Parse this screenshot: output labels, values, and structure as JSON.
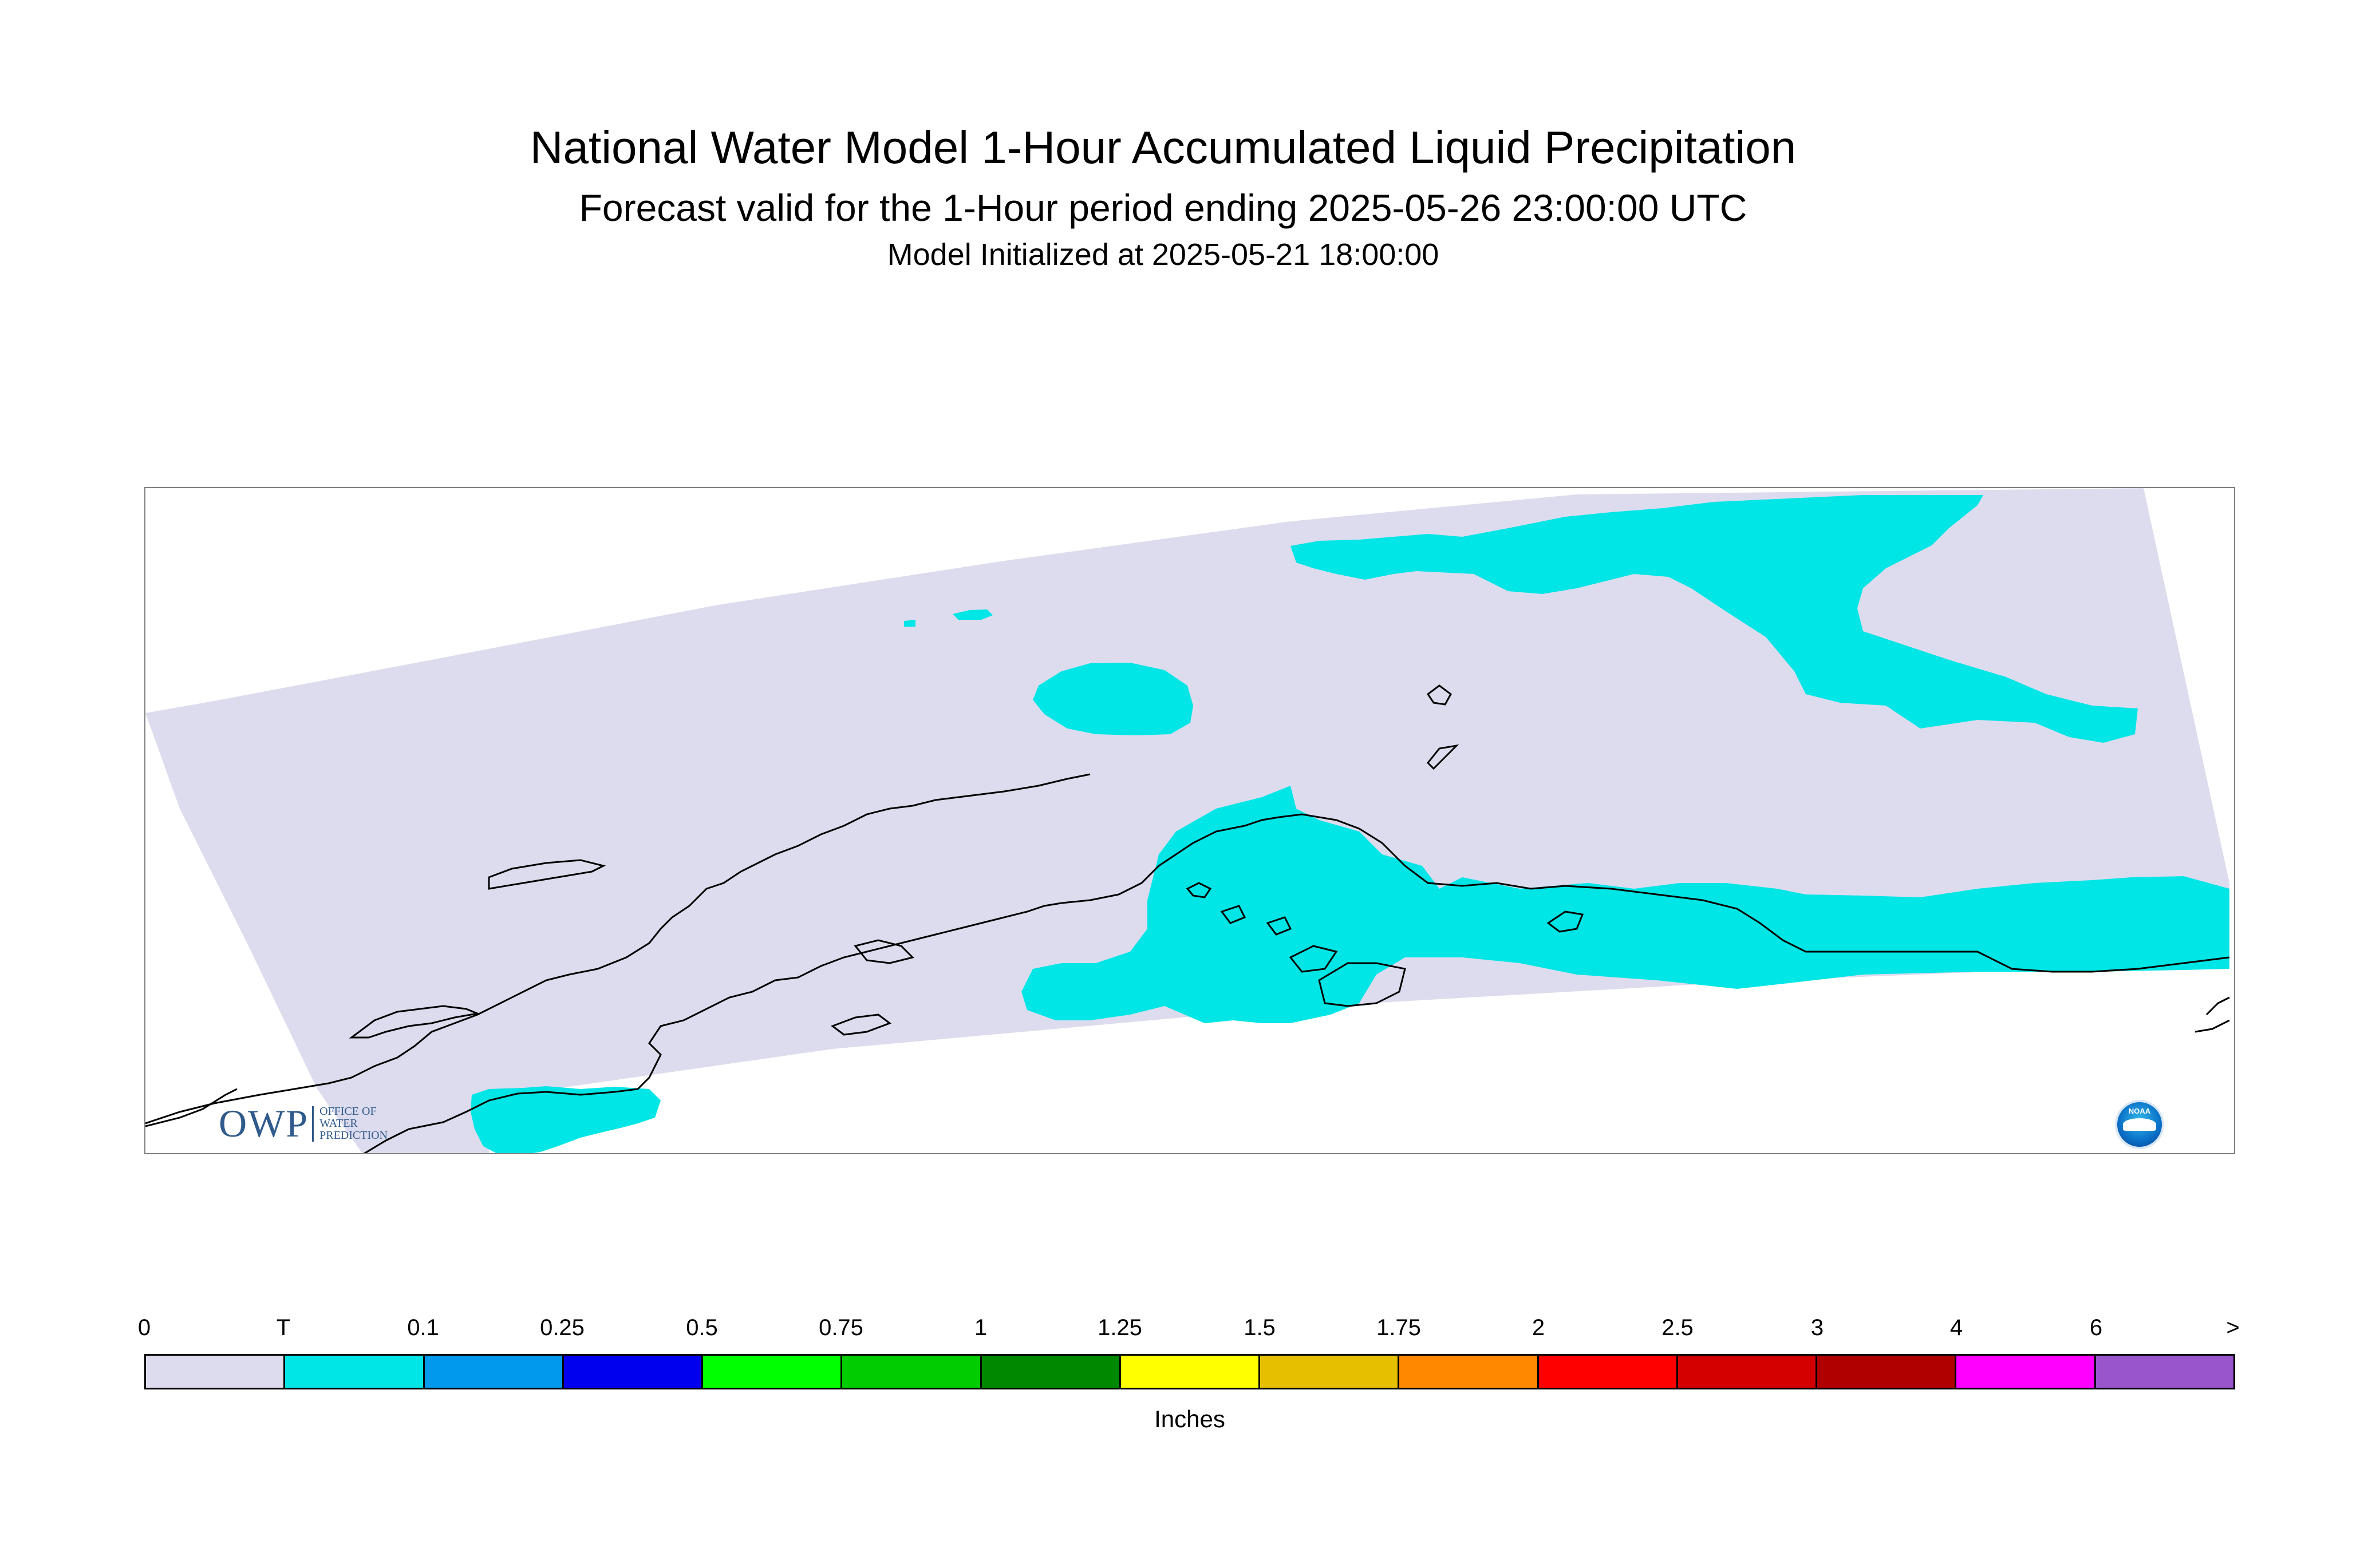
{
  "header": {
    "title": "National Water Model 1-Hour Accumulated Liquid Precipitation",
    "subtitle": "Forecast valid for the 1-Hour period ending 2025-05-26 23:00:00 UTC",
    "init_line": "Model Initialized at 2025-05-21 18:00:00"
  },
  "map": {
    "background_color": "#ffffff",
    "domain_color": "#dcdcee",
    "precip_color": "#00e5e5",
    "coastline_color": "#000000",
    "frame_color": "#808080",
    "precip_class_shown": "T"
  },
  "logos": {
    "owp": {
      "mark": "OWP",
      "lines": [
        "OFFICE OF",
        "WATER",
        "PREDICTION"
      ]
    },
    "noaa": {
      "label": "NOAA",
      "icon": "noaa-seal-icon"
    }
  },
  "legend": {
    "ticks": [
      "0",
      "T",
      "0.1",
      "0.25",
      "0.5",
      "0.75",
      "1",
      "1.25",
      "1.5",
      "1.75",
      "2",
      "2.5",
      "3",
      "4",
      "6",
      ">"
    ],
    "colors": [
      "#dcdcee",
      "#00e5e5",
      "#0099ee",
      "#0000ee",
      "#00ff00",
      "#00cc00",
      "#008800",
      "#ffff00",
      "#e6c000",
      "#ff8800",
      "#ff0000",
      "#d40000",
      "#b00000",
      "#ff00ff",
      "#9955cc"
    ],
    "unit": "Inches"
  }
}
